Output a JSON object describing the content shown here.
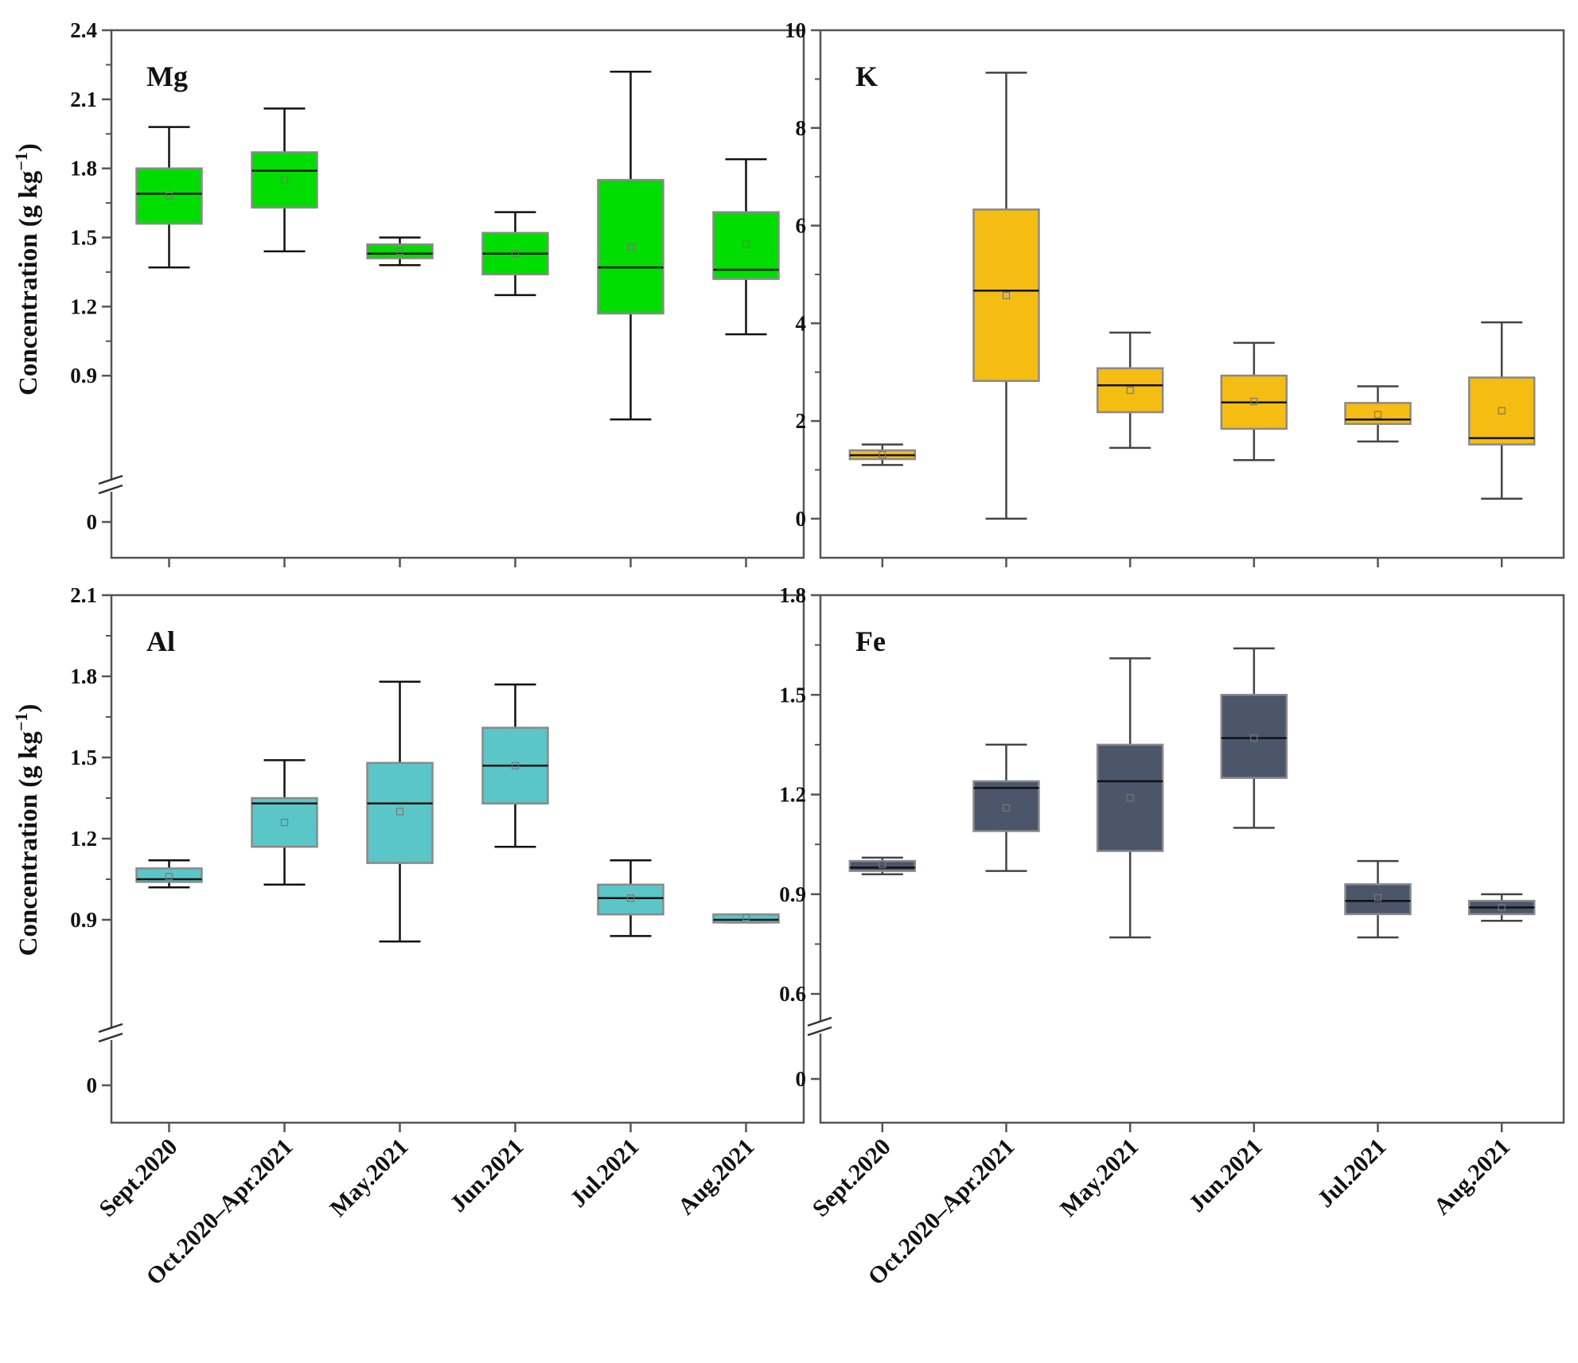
{
  "chart_data": [
    {
      "type": "box",
      "panel": "Mg",
      "ylabel": "Concentration (g kg",
      "ylabel_sup": "−1",
      "ylabel_end": ")",
      "ylim": [
        0.6,
        2.4
      ],
      "axis_break": true,
      "yticks": [
        "0.9",
        "1.2",
        "1.5",
        "1.8",
        "2.1",
        "2.4"
      ],
      "ytick_values": [
        0.9,
        1.2,
        1.5,
        1.8,
        2.1,
        2.4
      ],
      "zero_label": "0",
      "color": "#00dd00",
      "categories": [
        "Sept.2020",
        "Oct.2020–Apr.2021",
        "May.2021",
        "Jun.2021",
        "Jul.2021",
        "Aug.2021"
      ],
      "boxes": [
        {
          "min": 1.37,
          "q1": 1.56,
          "median": 1.69,
          "q3": 1.8,
          "max": 1.98,
          "mean": 1.68
        },
        {
          "min": 1.44,
          "q1": 1.63,
          "median": 1.79,
          "q3": 1.87,
          "max": 2.06,
          "mean": 1.75
        },
        {
          "min": 1.38,
          "q1": 1.41,
          "median": 1.43,
          "q3": 1.47,
          "max": 1.5,
          "mean": 1.44
        },
        {
          "min": 1.25,
          "q1": 1.34,
          "median": 1.43,
          "q3": 1.52,
          "max": 1.61,
          "mean": 1.43
        },
        {
          "min": 0.71,
          "q1": 1.17,
          "median": 1.37,
          "q3": 1.75,
          "max": 2.22,
          "mean": 1.46
        },
        {
          "min": 1.08,
          "q1": 1.32,
          "median": 1.36,
          "q3": 1.61,
          "max": 1.84,
          "mean": 1.47
        }
      ]
    },
    {
      "type": "box",
      "panel": "K",
      "ylim": [
        -0.8,
        10
      ],
      "axis_break": false,
      "yticks": [
        "0",
        "2",
        "4",
        "6",
        "8",
        "10"
      ],
      "ytick_values": [
        0,
        2,
        4,
        6,
        8,
        10
      ],
      "color": "#f5bc12",
      "categories": [
        "Sept.2020",
        "Oct.2020–Apr.2021",
        "May.2021",
        "Jun.2021",
        "Jul.2021",
        "Aug.2021"
      ],
      "boxes": [
        {
          "min": 1.1,
          "q1": 1.22,
          "median": 1.3,
          "q3": 1.4,
          "max": 1.52,
          "mean": 1.31
        },
        {
          "min": 0.0,
          "q1": 2.82,
          "median": 4.67,
          "q3": 6.33,
          "max": 9.13,
          "mean": 4.57
        },
        {
          "min": 1.45,
          "q1": 2.18,
          "median": 2.73,
          "q3": 3.08,
          "max": 3.81,
          "mean": 2.63
        },
        {
          "min": 1.2,
          "q1": 1.84,
          "median": 2.38,
          "q3": 2.93,
          "max": 3.6,
          "mean": 2.4
        },
        {
          "min": 1.58,
          "q1": 1.94,
          "median": 2.03,
          "q3": 2.37,
          "max": 2.71,
          "mean": 2.13
        },
        {
          "min": 0.41,
          "q1": 1.52,
          "median": 1.65,
          "q3": 2.89,
          "max": 4.02,
          "mean": 2.21
        }
      ]
    },
    {
      "type": "box",
      "panel": "Al",
      "ylabel": "Concentration (g kg",
      "ylabel_sup": "−1",
      "ylabel_end": ")",
      "ylim": [
        0.6,
        2.1
      ],
      "axis_break": true,
      "yticks": [
        "0.9",
        "1.2",
        "1.5",
        "1.8",
        "2.1"
      ],
      "ytick_values": [
        0.9,
        1.2,
        1.5,
        1.8,
        2.1
      ],
      "zero_label": "0",
      "color": "#5bc6c8",
      "categories": [
        "Sept.2020",
        "Oct.2020–Apr.2021",
        "May.2021",
        "Jun.2021",
        "Jul.2021",
        "Aug.2021"
      ],
      "boxes": [
        {
          "min": 1.02,
          "q1": 1.04,
          "median": 1.05,
          "q3": 1.09,
          "max": 1.12,
          "mean": 1.06
        },
        {
          "min": 1.03,
          "q1": 1.17,
          "median": 1.33,
          "q3": 1.35,
          "max": 1.49,
          "mean": 1.26
        },
        {
          "min": 0.82,
          "q1": 1.11,
          "median": 1.33,
          "q3": 1.48,
          "max": 1.78,
          "mean": 1.3
        },
        {
          "min": 1.17,
          "q1": 1.33,
          "median": 1.47,
          "q3": 1.61,
          "max": 1.77,
          "mean": 1.47
        },
        {
          "min": 0.84,
          "q1": 0.92,
          "median": 0.98,
          "q3": 1.03,
          "max": 1.12,
          "mean": 0.98
        },
        {
          "min": 0.89,
          "q1": 0.89,
          "median": 0.9,
          "q3": 0.92,
          "max": 0.92,
          "mean": 0.91
        }
      ]
    },
    {
      "type": "box",
      "panel": "Fe",
      "ylim": [
        0.55,
        1.8
      ],
      "axis_break": true,
      "yticks": [
        "0.6",
        "0.9",
        "1.2",
        "1.5",
        "1.8"
      ],
      "ytick_values": [
        0.6,
        0.9,
        1.2,
        1.5,
        1.8
      ],
      "zero_label": "0",
      "color": "#4b566a",
      "categories": [
        "Sept.2020",
        "Oct.2020–Apr.2021",
        "May.2021",
        "Jun.2021",
        "Jul.2021",
        "Aug.2021"
      ],
      "boxes": [
        {
          "min": 0.96,
          "q1": 0.97,
          "median": 0.98,
          "q3": 1.0,
          "max": 1.01,
          "mean": 0.99
        },
        {
          "min": 0.97,
          "q1": 1.09,
          "median": 1.22,
          "q3": 1.24,
          "max": 1.35,
          "mean": 1.16
        },
        {
          "min": 0.77,
          "q1": 1.03,
          "median": 1.24,
          "q3": 1.35,
          "max": 1.61,
          "mean": 1.19
        },
        {
          "min": 1.1,
          "q1": 1.25,
          "median": 1.37,
          "q3": 1.5,
          "max": 1.64,
          "mean": 1.37
        },
        {
          "min": 0.77,
          "q1": 0.84,
          "median": 0.88,
          "q3": 0.93,
          "max": 1.0,
          "mean": 0.89
        },
        {
          "min": 0.82,
          "q1": 0.84,
          "median": 0.86,
          "q3": 0.88,
          "max": 0.9,
          "mean": 0.86
        }
      ]
    }
  ]
}
